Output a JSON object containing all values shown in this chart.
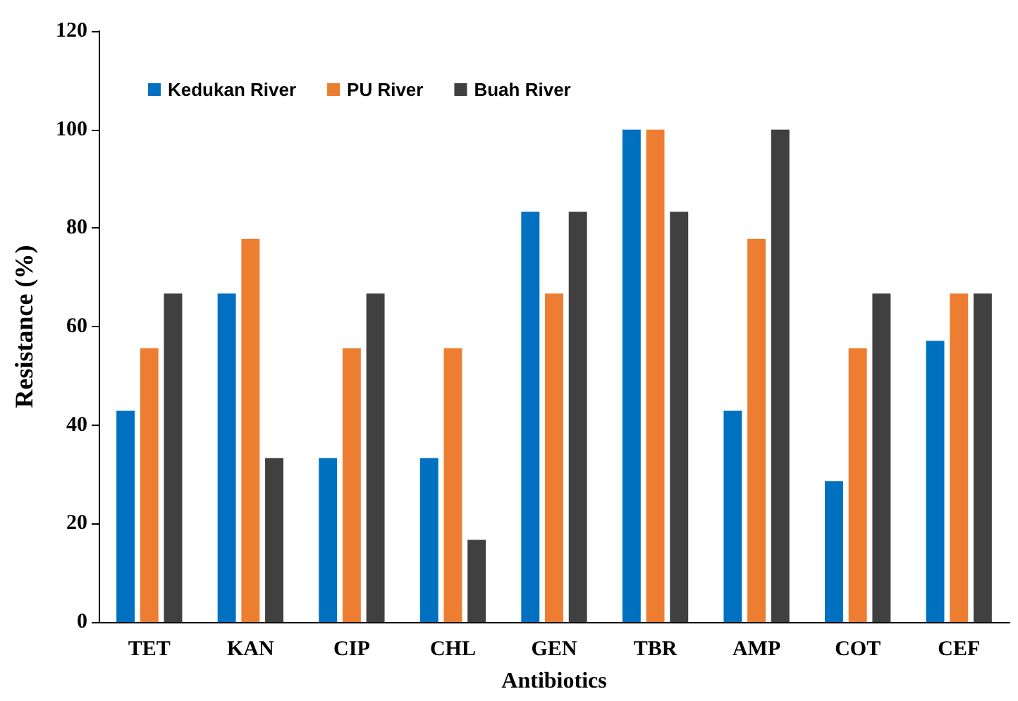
{
  "chart_data": {
    "type": "bar",
    "xlabel": "Antibiotics",
    "ylabel": "Resistance (%)",
    "categories": [
      "TET",
      "KAN",
      "CIP",
      "CHL",
      "GEN",
      "TBR",
      "AMP",
      "COT",
      "CEF"
    ],
    "series": [
      {
        "name": "Kedukan River",
        "color": "#0070c0",
        "values": [
          42.9,
          66.7,
          33.3,
          33.3,
          83.3,
          100,
          42.9,
          28.6,
          57.1
        ]
      },
      {
        "name": "PU River",
        "color": "#ed7d31",
        "values": [
          55.6,
          77.8,
          55.6,
          55.6,
          66.7,
          100,
          77.8,
          55.6,
          66.7
        ]
      },
      {
        "name": "Buah River",
        "color": "#404040",
        "values": [
          66.7,
          33.3,
          66.7,
          16.7,
          83.3,
          83.3,
          100,
          66.7,
          66.7
        ]
      }
    ],
    "ylim": [
      0,
      120
    ],
    "yticks": [
      0,
      20,
      40,
      60,
      80,
      100,
      120
    ],
    "grid": false,
    "legend": "top left"
  }
}
